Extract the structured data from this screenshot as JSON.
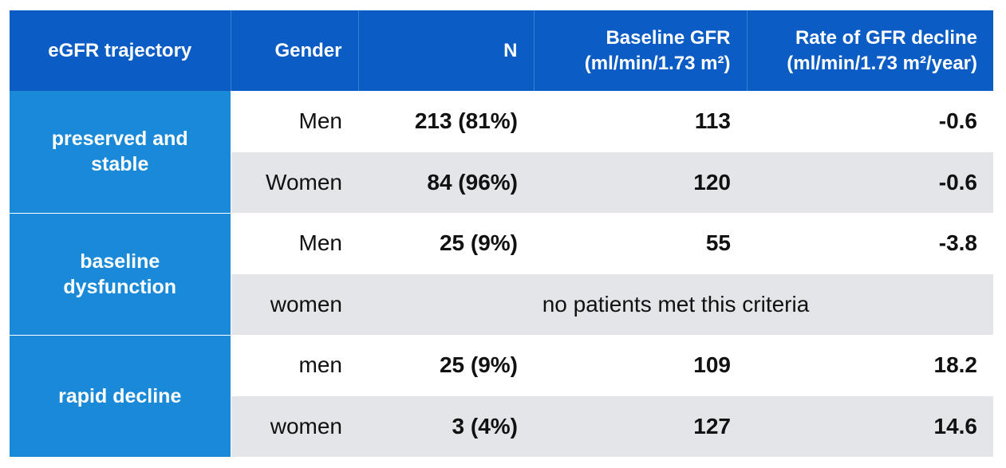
{
  "header": {
    "col_trajectory": "eGFR trajectory",
    "col_gender": "Gender",
    "col_n": "N",
    "col_baseline_line1": "Baseline GFR",
    "col_baseline_line2": "(ml/min/1.73 m²)",
    "col_rate_line1": "Rate of GFR decline",
    "col_rate_line2": "(ml/min/1.73 m²/year)"
  },
  "groups": [
    {
      "label": "preserved and stable",
      "rows": [
        {
          "gender": "Men",
          "n": "213 (81%)",
          "baseline": "113",
          "rate": "-0.6"
        },
        {
          "gender": "Women",
          "n": "84 (96%)",
          "baseline": "120",
          "rate": "-0.6"
        }
      ]
    },
    {
      "label": "baseline dysfunction",
      "rows": [
        {
          "gender": "Men",
          "n": "25 (9%)",
          "baseline": "55",
          "rate": "-3.8"
        },
        {
          "gender": "women",
          "note": "no patients met this criteria"
        }
      ]
    },
    {
      "label": "rapid decline",
      "rows": [
        {
          "gender": "men",
          "n": "25 (9%)",
          "baseline": "109",
          "rate": "18.2"
        },
        {
          "gender": "women",
          "n": "3 (4%)",
          "baseline": "127",
          "rate": "14.6"
        }
      ]
    }
  ],
  "colors": {
    "header_bg": "#0b5cc4",
    "group_bg": "#1a8ad8",
    "alt_row_bg": "#e3e5e8"
  }
}
